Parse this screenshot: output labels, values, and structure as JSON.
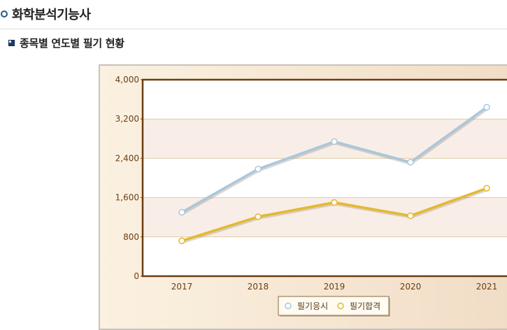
{
  "page": {
    "title": "화학분석기능사"
  },
  "section": {
    "title": "종목별 연도별 필기 현황"
  },
  "colors": {
    "series_applicants": "#a9c7dc",
    "series_passed": "#e4b92c",
    "plot_border": "#6b3d12",
    "band": "#f8eee7",
    "axis_text": "#6b3d12"
  },
  "chart_data": {
    "type": "line",
    "title": "",
    "xlabel": "",
    "ylabel": "",
    "categories": [
      "2017",
      "2018",
      "2019",
      "2020",
      "2021"
    ],
    "ylim": [
      0,
      4000
    ],
    "yticks": [
      0,
      800,
      1600,
      2400,
      3200,
      4000
    ],
    "ytick_labels": [
      "0",
      "800",
      "1,600",
      "2,400",
      "3,200",
      "4,000"
    ],
    "grid": true,
    "legend_position": "bottom",
    "series": [
      {
        "name": "필기응시",
        "color": "#a9c7dc",
        "values": [
          1300,
          2180,
          2740,
          2320,
          3440
        ]
      },
      {
        "name": "필기합격",
        "color": "#e4b92c",
        "values": [
          720,
          1210,
          1500,
          1230,
          1790
        ]
      }
    ]
  }
}
